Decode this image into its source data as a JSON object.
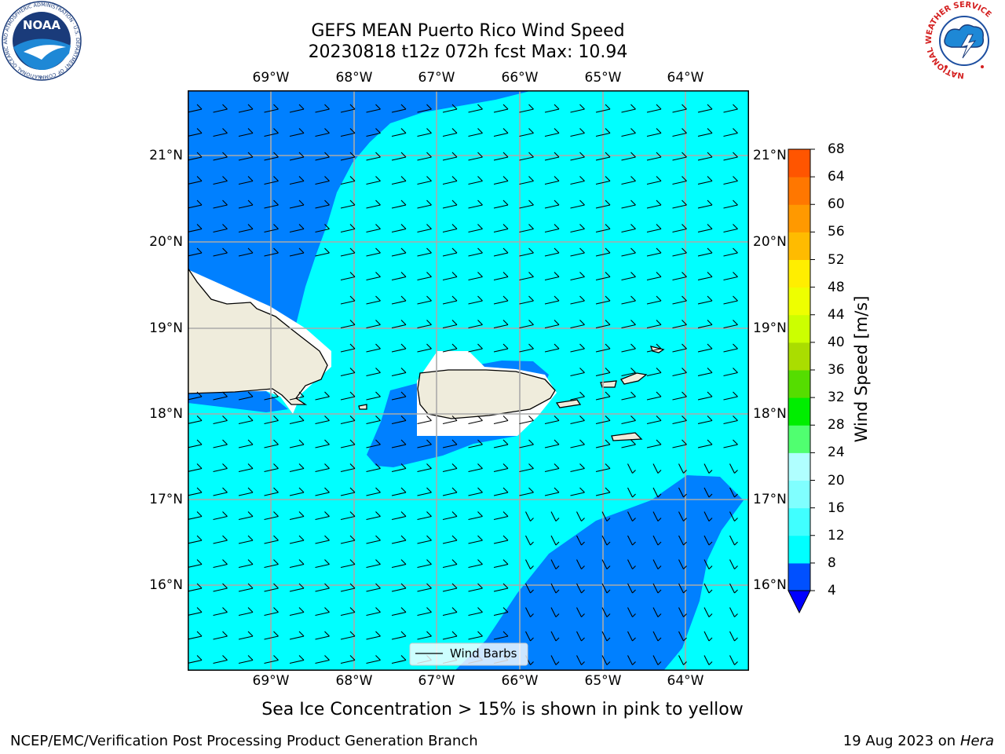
{
  "title_line1": "GEFS MEAN Puerto Rico Wind Speed",
  "title_line2": "20230818 t12z 072h fcst   Max: 10.94",
  "lon_ticks": [
    "69°W",
    "68°W",
    "67°W",
    "66°W",
    "65°W",
    "64°W"
  ],
  "lat_ticks": [
    "21°N",
    "20°N",
    "19°N",
    "18°N",
    "17°N",
    "16°N"
  ],
  "legend_label": "Wind Barbs",
  "colorbar": {
    "title": "Wind Speed [m/s]",
    "ticks": [
      "4",
      "8",
      "12",
      "16",
      "20",
      "24",
      "28",
      "32",
      "36",
      "40",
      "44",
      "48",
      "52",
      "56",
      "60",
      "64",
      "68"
    ],
    "colors": [
      "#0050ff",
      "#00ffff",
      "#40ffff",
      "#80ffff",
      "#b0ffff",
      "#50ff70",
      "#00ee00",
      "#55dd00",
      "#aadd00",
      "#ccff00",
      "#eeff00",
      "#ffee00",
      "#ffbb00",
      "#ff9900",
      "#ff7700",
      "#ff5500",
      "#ff2200",
      "#ff0000"
    ],
    "under_color": "#0000ff"
  },
  "map_colors": {
    "fill_4_8": "#0080ff",
    "fill_8_12": "#00ffff",
    "land": "#efecdc",
    "grid": "#aaaaaa"
  },
  "footnote": "Sea Ice Concentration > 15% is shown in pink to yellow",
  "footer_left": "NCEP/EMC/Verification Post Processing Product Generation Branch",
  "footer_date": "19 Aug 2023 on",
  "footer_machine": "Hera",
  "logos": {
    "noaa_text": "NOAA",
    "noaa_ring": "NATIONAL OCEANIC AND ATMOSPHERIC ADMINISTRATION · U.S. DEPARTMENT OF COMMERCE",
    "nws_ring": "NATIONAL WEATHER SERVICE"
  }
}
